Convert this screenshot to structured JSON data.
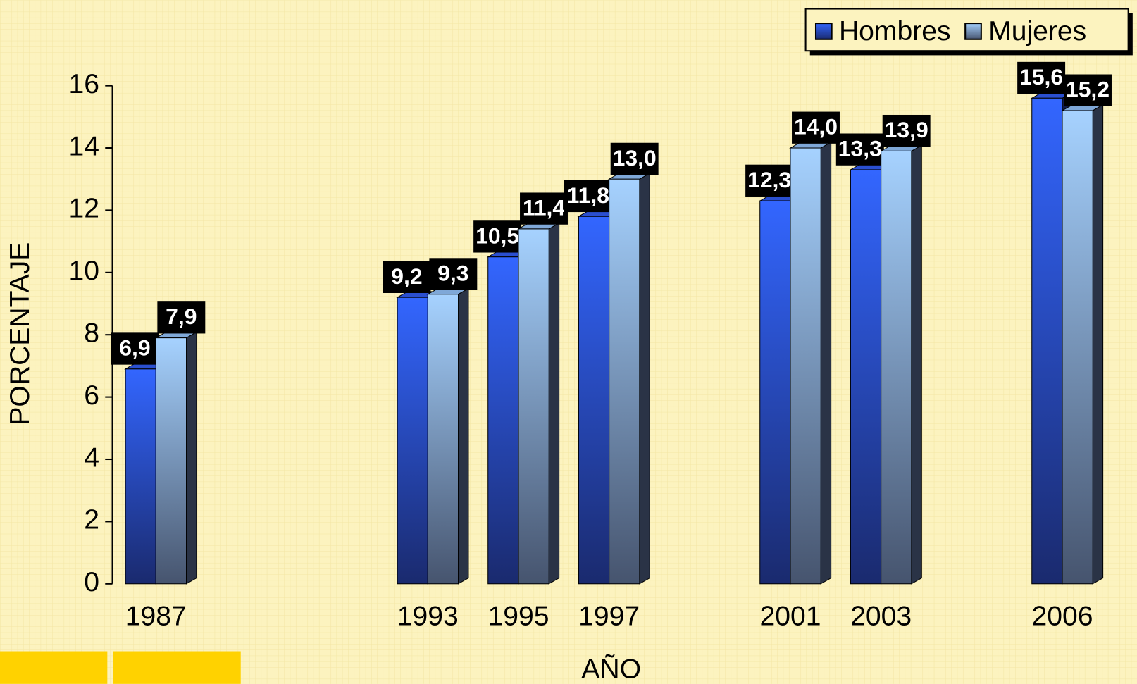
{
  "chart_data": {
    "type": "bar",
    "categories": [
      "1987",
      null,
      null,
      "1993",
      "1995",
      "1997",
      null,
      "2001",
      "2003",
      null,
      "2006"
    ],
    "series": [
      {
        "name": "Hombres",
        "color": "#3366ff",
        "values": [
          6.9,
          null,
          null,
          9.2,
          10.5,
          11.8,
          null,
          12.3,
          13.3,
          null,
          15.6
        ],
        "value_labels": [
          "6,9",
          null,
          null,
          "9,2",
          "10,5",
          "11,8",
          null,
          "12,3",
          "13,3",
          null,
          "15,6"
        ]
      },
      {
        "name": "Mujeres",
        "color": "#99ccff",
        "values": [
          7.9,
          null,
          null,
          9.3,
          11.4,
          13.0,
          null,
          14.0,
          13.9,
          null,
          15.2
        ],
        "value_labels": [
          "7,9",
          null,
          null,
          "9,3",
          "11,4",
          "13,0",
          null,
          "14,0",
          "13,9",
          null,
          "15,2"
        ]
      }
    ],
    "ylabel": "PORCENTAJE",
    "xlabel": "AÑO",
    "ylim": [
      0,
      16
    ],
    "yticks": [
      0,
      2,
      4,
      6,
      8,
      10,
      12,
      14,
      16
    ],
    "legend": "top-right"
  }
}
